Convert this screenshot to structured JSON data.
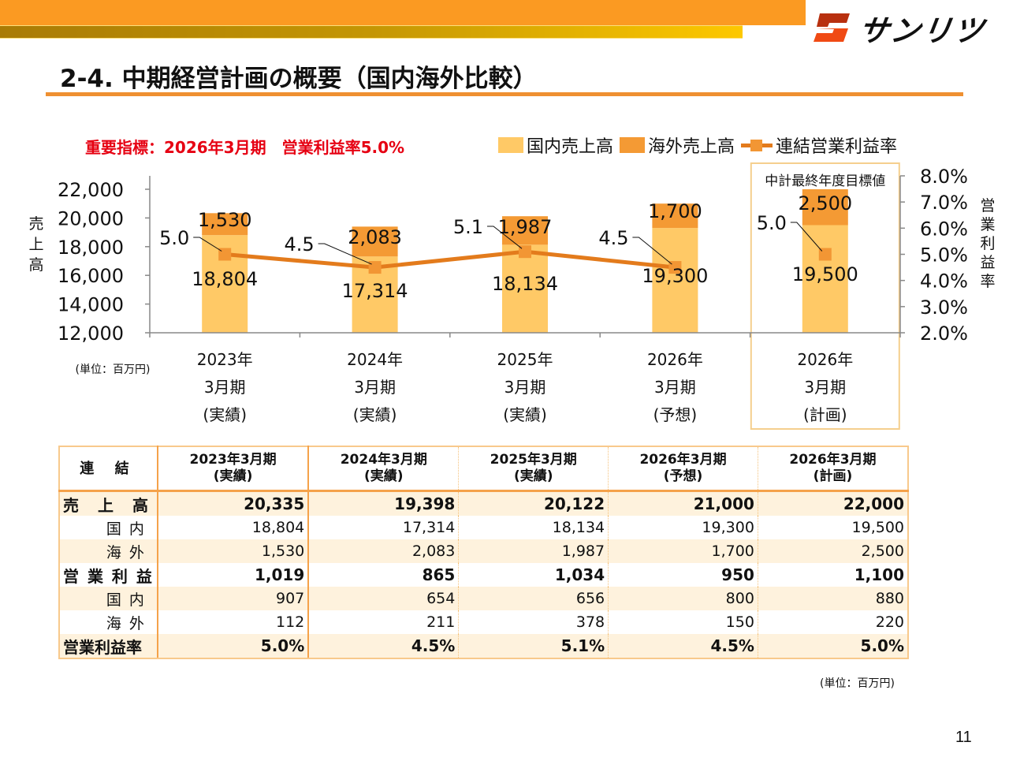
{
  "header": {
    "logo_text": "サンリツ",
    "title": "2-4. 中期経営計画の概要（国内海外比較）"
  },
  "kpi": "重要指標：2026年3月期　営業利益率5.0%",
  "legend": {
    "domestic": "国内売上高",
    "overseas": "海外売上高",
    "margin": "連結営業利益率"
  },
  "colors": {
    "domestic": "#ffc966",
    "overseas": "#f49a34",
    "line": "#e37b1c",
    "marker": "#f29634",
    "kpi": "#e60012",
    "highlight_border": "#f5cf8e"
  },
  "chart_data": {
    "type": "bar",
    "stacked": true,
    "categories": [
      [
        "2023年",
        "3月期",
        "(実績)"
      ],
      [
        "2024年",
        "3月期",
        "(実績)"
      ],
      [
        "2025年",
        "3月期",
        "(実績)"
      ],
      [
        "2026年",
        "3月期",
        "(予想)"
      ],
      [
        "2026年",
        "3月期",
        "(計画)"
      ]
    ],
    "series": [
      {
        "name": "国内売上高",
        "axis": "left",
        "values": [
          18804,
          17314,
          18134,
          19300,
          19500
        ],
        "labels": [
          "18,804",
          "17,314",
          "18,134",
          "19,300",
          "19,500"
        ]
      },
      {
        "name": "海外売上高",
        "axis": "left",
        "values": [
          1530,
          2083,
          1987,
          1700,
          2500
        ],
        "labels": [
          "1,530",
          "2,083",
          "1,987",
          "1,700",
          "2,500"
        ]
      },
      {
        "name": "連結営業利益率",
        "type": "line",
        "axis": "right",
        "values": [
          5.0,
          4.5,
          5.1,
          4.5,
          5.0
        ],
        "labels": [
          "5.0",
          "4.5",
          "5.1",
          "4.5",
          "5.0"
        ],
        "connected_through": 3
      }
    ],
    "ylabel": "売上高",
    "y2label": "営業利益率",
    "ylim": [
      12000,
      22000
    ],
    "yticks": [
      "12,000",
      "14,000",
      "16,000",
      "18,000",
      "20,000",
      "22,000"
    ],
    "y2lim": [
      2.0,
      8.0
    ],
    "y2ticks": [
      "2.0%",
      "3.0%",
      "4.0%",
      "5.0%",
      "6.0%",
      "7.0%",
      "8.0%"
    ],
    "unit_note": "(単位：百万円)",
    "annotation": "中計最終年度目標値",
    "legend_position": "top-right",
    "grid": false
  },
  "table": {
    "corner": "連 結",
    "columns": [
      [
        "2023年3月期",
        "(実績)"
      ],
      [
        "2024年3月期",
        "(実績)"
      ],
      [
        "2025年3月期",
        "(実績)"
      ],
      [
        "2026年3月期",
        "(予想)"
      ],
      [
        "2026年3月期",
        "(計画)"
      ]
    ],
    "rows": [
      {
        "label": "売　上　高",
        "bold": true,
        "values": [
          "20,335",
          "19,398",
          "20,122",
          "21,000",
          "22,000"
        ]
      },
      {
        "label": "国内",
        "bold": false,
        "values": [
          "18,804",
          "17,314",
          "18,134",
          "19,300",
          "19,500"
        ]
      },
      {
        "label": "海外",
        "bold": false,
        "values": [
          "1,530",
          "2,083",
          "1,987",
          "1,700",
          "2,500"
        ]
      },
      {
        "label": "営 業 利 益",
        "bold": true,
        "values": [
          "1,019",
          "865",
          "1,034",
          "950",
          "1,100"
        ]
      },
      {
        "label": "国内",
        "bold": false,
        "values": [
          "907",
          "654",
          "656",
          "800",
          "880"
        ]
      },
      {
        "label": "海外",
        "bold": false,
        "values": [
          "112",
          "211",
          "378",
          "150",
          "220"
        ]
      },
      {
        "label": "営業利益率",
        "bold": true,
        "values": [
          "5.0%",
          "4.5%",
          "5.1%",
          "4.5%",
          "5.0%"
        ]
      }
    ],
    "unit_note": "(単位：百万円)"
  },
  "page_number": "11"
}
